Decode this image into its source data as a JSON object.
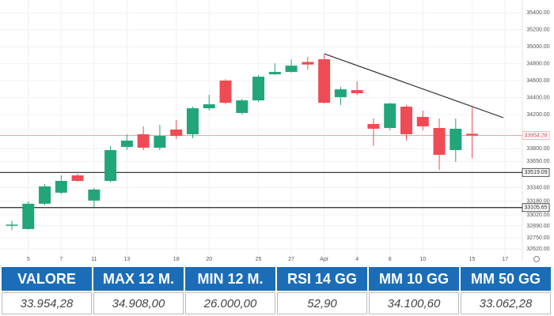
{
  "chart_data": {
    "type": "candlestick",
    "categories": [
      null,
      "5",
      null,
      "7",
      null,
      "11",
      null,
      "13",
      null,
      null,
      "18",
      null,
      "20",
      null,
      null,
      "25",
      null,
      "27",
      null,
      "Apr",
      null,
      "4",
      null,
      "8",
      null,
      "10",
      null,
      null,
      "15",
      null,
      "17"
    ],
    "open": [
      32895,
      32853,
      33151,
      33281,
      33485,
      33188,
      33420,
      33820,
      33969,
      33811,
      34025,
      33969,
      34275,
      34601,
      34220,
      34368,
      34675,
      34703,
      34820,
      34852,
      34406,
      34489,
      34090,
      34043,
      34294,
      34173,
      34043,
      33783,
      33975,
      null,
      null
    ],
    "high": [
      32950,
      33179,
      33383,
      33485,
      33504,
      33337,
      33829,
      33969,
      34062,
      34080,
      34136,
      34294,
      34433,
      34619,
      34387,
      34666,
      34805,
      34852,
      34880,
      34907,
      34526,
      34591,
      34155,
      34340,
      34313,
      34248,
      34155,
      34155,
      34294,
      null,
      null
    ],
    "low": [
      32840,
      32844,
      33132,
      33262,
      33411,
      33114,
      33402,
      33783,
      33783,
      33783,
      33913,
      33922,
      34248,
      34322,
      34201,
      34350,
      34666,
      34694,
      34730,
      34331,
      34313,
      34433,
      33829,
      34015,
      33894,
      34015,
      33550,
      33643,
      33690,
      null,
      null
    ],
    "close": [
      32905,
      33151,
      33355,
      33420,
      33420,
      33318,
      33783,
      33894,
      33811,
      33950,
      33950,
      34275,
      34322,
      34340,
      34368,
      34647,
      34703,
      34777,
      34790,
      34340,
      34498,
      34452,
      34034,
      34331,
      33969,
      34062,
      33727,
      34034,
      33954.28,
      null,
      null
    ],
    "up_color": "#22a57a",
    "down_color": "#ef4b55",
    "ylim": [
      32480,
      35550
    ],
    "yticks": [
      {
        "value": 35400,
        "label": "35400.00"
      },
      {
        "value": 35200,
        "label": "35200.00"
      },
      {
        "value": 35000,
        "label": "35000.00"
      },
      {
        "value": 34800,
        "label": "34800.00"
      },
      {
        "value": 34600,
        "label": "34600.00"
      },
      {
        "value": 34400,
        "label": "34400.00"
      },
      {
        "value": 34200,
        "label": "34200.00"
      },
      {
        "value": 33800,
        "label": "33800.00"
      },
      {
        "value": 33650,
        "label": "33650.00"
      },
      {
        "value": 33340,
        "label": "33340.00"
      },
      {
        "value": 33180,
        "label": "33180.00"
      },
      {
        "value": 33020,
        "label": "33020.00"
      },
      {
        "value": 32890,
        "label": "32890.00"
      },
      {
        "value": 32750,
        "label": "32750.00"
      },
      {
        "value": 32620,
        "label": "32620.00"
      }
    ],
    "grid": true,
    "levels": [
      {
        "value": 33954.28,
        "color": "#f2a0a8"
      },
      {
        "value": 33519.09,
        "color": "#222222"
      },
      {
        "value": 33105.65,
        "color": "#222222"
      }
    ],
    "trendline": {
      "x": [
        19,
        29.9
      ],
      "y": [
        34917,
        34164
      ],
      "color": "#333333"
    }
  },
  "table": {
    "headers": [
      "VALORE",
      "MAX 12 M.",
      "MIN 12 M.",
      "RSI 14 GG",
      "MM 10 GG",
      "MM 50 GG"
    ],
    "rows": [
      [
        "33.954,28",
        "34.908,00",
        "26.000,00",
        "52,90",
        "34.100,60",
        "33.062,28"
      ]
    ]
  }
}
